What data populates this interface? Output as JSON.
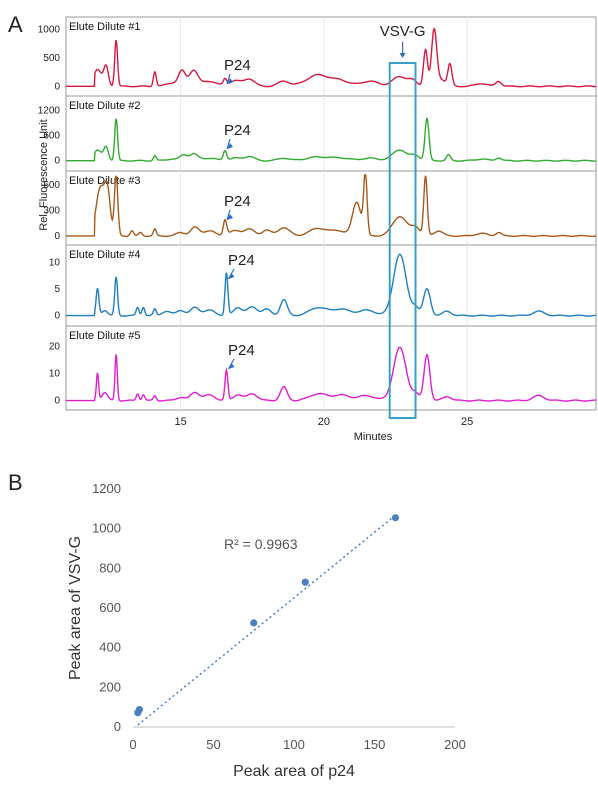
{
  "chart_data": [
    {
      "type": "line",
      "panel": "A",
      "ylabel": "Rel. Fluorescence Unit",
      "xlabel": "Minutes",
      "xlim": [
        11,
        29.5
      ],
      "xticks": [
        15,
        20,
        25
      ],
      "annotations": {
        "p24": "P24",
        "vsvg": "VSV-G"
      },
      "highlight_window": [
        22.3,
        23.2
      ],
      "series": [
        {
          "name": "Elute Dilute #1",
          "color": "#d6173e",
          "ylim": [
            -100,
            1150
          ],
          "yticks": [
            0,
            500,
            1000
          ],
          "peaks": [
            [
              12.1,
              300,
              0.14
            ],
            [
              12.4,
              340,
              0.08
            ],
            [
              12.75,
              820,
              0.05
            ],
            [
              14.1,
              260,
              0.05
            ],
            [
              14.7,
              60,
              0.2
            ],
            [
              15.05,
              260,
              0.12
            ],
            [
              15.45,
              280,
              0.15
            ],
            [
              16.0,
              90,
              0.25
            ],
            [
              16.55,
              110,
              0.06
            ],
            [
              16.9,
              100,
              0.2
            ],
            [
              17.4,
              130,
              0.18
            ],
            [
              18.6,
              90,
              0.2
            ],
            [
              19.8,
              200,
              0.4
            ],
            [
              20.6,
              90,
              0.3
            ],
            [
              21.6,
              90,
              0.3
            ],
            [
              22.65,
              170,
              0.25
            ],
            [
              23.1,
              90,
              0.15
            ],
            [
              23.55,
              650,
              0.07
            ],
            [
              23.85,
              980,
              0.09
            ],
            [
              24.1,
              120,
              0.15
            ],
            [
              24.4,
              380,
              0.07
            ],
            [
              25.5,
              50,
              0.2
            ],
            [
              26.1,
              90,
              0.1
            ]
          ],
          "start": 12.0
        },
        {
          "name": "Elute Dilute #2",
          "color": "#33aa33",
          "ylim": [
            -150,
            1450
          ],
          "yticks": [
            0,
            600,
            1200
          ],
          "peaks": [
            [
              12.1,
              250,
              0.14
            ],
            [
              12.4,
              320,
              0.08
            ],
            [
              12.75,
              1000,
              0.05
            ],
            [
              14.1,
              120,
              0.05
            ],
            [
              14.7,
              40,
              0.2
            ],
            [
              15.1,
              130,
              0.12
            ],
            [
              15.45,
              160,
              0.15
            ],
            [
              16.0,
              60,
              0.25
            ],
            [
              16.55,
              230,
              0.06
            ],
            [
              16.9,
              60,
              0.2
            ],
            [
              17.4,
              100,
              0.18
            ],
            [
              18.6,
              60,
              0.2
            ],
            [
              19.8,
              90,
              0.4
            ],
            [
              20.6,
              60,
              0.3
            ],
            [
              21.6,
              60,
              0.3
            ],
            [
              22.65,
              260,
              0.25
            ],
            [
              23.2,
              120,
              0.15
            ],
            [
              23.6,
              1000,
              0.07
            ],
            [
              24.35,
              140,
              0.07
            ],
            [
              25.5,
              40,
              0.2
            ],
            [
              26.1,
              70,
              0.1
            ]
          ],
          "start": 12.0
        },
        {
          "name": "Elute Dilute #3",
          "color": "#a55a1c",
          "ylim": [
            -60,
            720
          ],
          "yticks": [
            0,
            300,
            600
          ],
          "peaks": [
            [
              12.2,
              560,
              0.15
            ],
            [
              12.45,
              480,
              0.1
            ],
            [
              12.75,
              700,
              0.06
            ],
            [
              13.3,
              60,
              0.06
            ],
            [
              13.6,
              40,
              0.06
            ],
            [
              14.1,
              80,
              0.05
            ],
            [
              15.0,
              40,
              0.15
            ],
            [
              15.5,
              100,
              0.15
            ],
            [
              16.0,
              60,
              0.2
            ],
            [
              16.55,
              180,
              0.06
            ],
            [
              16.9,
              60,
              0.2
            ],
            [
              17.4,
              80,
              0.18
            ],
            [
              18.0,
              70,
              0.15
            ],
            [
              18.6,
              100,
              0.2
            ],
            [
              19.8,
              90,
              0.3
            ],
            [
              20.5,
              60,
              0.25
            ],
            [
              21.15,
              400,
              0.15
            ],
            [
              21.45,
              700,
              0.06
            ],
            [
              22.65,
              230,
              0.25
            ],
            [
              23.2,
              100,
              0.15
            ],
            [
              23.55,
              700,
              0.06
            ],
            [
              24.0,
              60,
              0.15
            ],
            [
              25.5,
              30,
              0.2
            ],
            [
              26.1,
              40,
              0.1
            ]
          ],
          "start": 12.0
        },
        {
          "name": "Elute Dilute #4",
          "color": "#1f7fbf",
          "ylim": [
            -1.2,
            12.5
          ],
          "yticks": [
            0,
            5,
            10
          ],
          "peaks": [
            [
              12.1,
              5,
              0.05
            ],
            [
              12.35,
              1,
              0.1
            ],
            [
              12.75,
              7.2,
              0.05
            ],
            [
              13.5,
              1.5,
              0.05
            ],
            [
              13.7,
              1.6,
              0.05
            ],
            [
              14.1,
              1.2,
              0.05
            ],
            [
              14.5,
              0.8,
              0.15
            ],
            [
              15.0,
              1,
              0.15
            ],
            [
              15.5,
              1.5,
              0.15
            ],
            [
              16.0,
              1,
              0.2
            ],
            [
              16.6,
              8,
              0.05
            ],
            [
              17.0,
              1.5,
              0.15
            ],
            [
              17.5,
              1.6,
              0.18
            ],
            [
              18.0,
              1.2,
              0.15
            ],
            [
              18.6,
              3,
              0.12
            ],
            [
              19.8,
              1.5,
              0.3
            ],
            [
              20.6,
              1.2,
              0.3
            ],
            [
              21.5,
              1.0,
              0.3
            ],
            [
              22.65,
              11.5,
              0.22
            ],
            [
              23.2,
              1.5,
              0.12
            ],
            [
              23.6,
              5,
              0.12
            ],
            [
              24.3,
              0.8,
              0.15
            ],
            [
              27.5,
              0.8,
              0.2
            ]
          ],
          "start": 12.0
        },
        {
          "name": "Elute Dilute #5",
          "color": "#e01ed0",
          "ylim": [
            -2,
            26
          ],
          "yticks": [
            0,
            10,
            20
          ],
          "peaks": [
            [
              12.1,
              10,
              0.04
            ],
            [
              12.35,
              3,
              0.1
            ],
            [
              12.75,
              17,
              0.04
            ],
            [
              13.5,
              2.5,
              0.05
            ],
            [
              13.7,
              2.2,
              0.05
            ],
            [
              14.1,
              1.8,
              0.05
            ],
            [
              15.0,
              1.2,
              0.15
            ],
            [
              15.5,
              3,
              0.15
            ],
            [
              16.0,
              2,
              0.2
            ],
            [
              16.6,
              11,
              0.05
            ],
            [
              17.0,
              2.2,
              0.15
            ],
            [
              17.5,
              2.5,
              0.18
            ],
            [
              18.6,
              5,
              0.12
            ],
            [
              19.8,
              2.5,
              0.3
            ],
            [
              20.6,
              2,
              0.3
            ],
            [
              21.5,
              1.8,
              0.3
            ],
            [
              22.65,
              19.5,
              0.22
            ],
            [
              23.2,
              2.5,
              0.12
            ],
            [
              23.6,
              17,
              0.1
            ],
            [
              24.3,
              1.5,
              0.15
            ],
            [
              27.5,
              1.8,
              0.2
            ]
          ],
          "start": 12.0
        }
      ],
      "p24_positions": [
        [
          16.55,
          1
        ],
        [
          16.55,
          2
        ],
        [
          16.55,
          3
        ],
        [
          16.6,
          4
        ],
        [
          16.6,
          5
        ]
      ]
    },
    {
      "type": "scatter",
      "panel": "B",
      "xlabel": "Peak area of p24",
      "ylabel": "Peak area of VSV-G",
      "xlim": [
        0,
        200
      ],
      "ylim": [
        0,
        1200
      ],
      "xticks": [
        0,
        50,
        100,
        150,
        200
      ],
      "yticks": [
        0,
        200,
        400,
        600,
        800,
        1000,
        1200
      ],
      "points": [
        [
          3,
          72
        ],
        [
          4,
          88
        ],
        [
          75,
          525
        ],
        [
          107,
          730
        ],
        [
          163,
          1055
        ]
      ],
      "trendline": [
        [
          3,
          10
        ],
        [
          163,
          1068
        ]
      ],
      "r2_label": "R² = 0.9963",
      "point_color": "#4a7fc0"
    }
  ],
  "panel_labels": {
    "a": "A",
    "b": "B"
  }
}
